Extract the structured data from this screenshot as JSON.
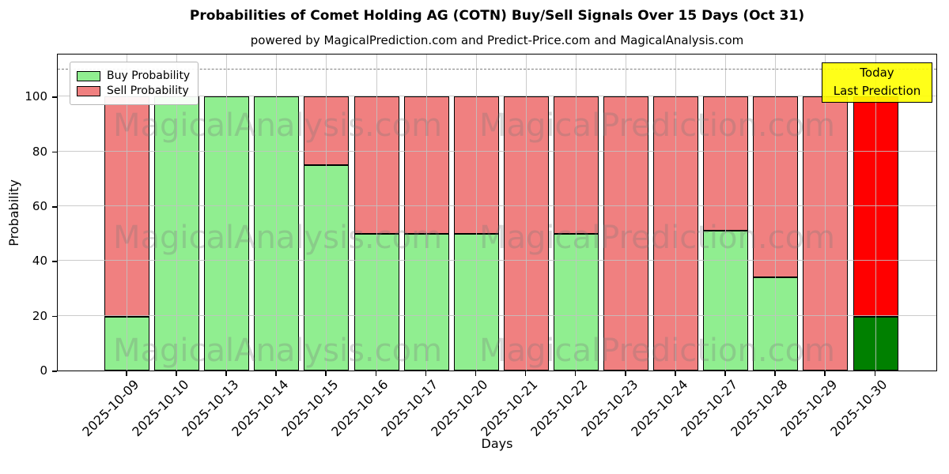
{
  "chart_data": {
    "type": "bar",
    "stacked": true,
    "title": "Probabilities of Comet Holding AG (COTN) Buy/Sell Signals Over 15 Days (Oct 31)",
    "subtitle": "powered by MagicalPrediction.com and Predict-Price.com and MagicalAnalysis.com",
    "xlabel": "Days",
    "ylabel": "Probability",
    "ylim": [
      0,
      116
    ],
    "yticks": [
      0,
      20,
      40,
      60,
      80,
      100
    ],
    "grid": "on",
    "dashed_line_y": 110,
    "legend_position": "upper-left",
    "categories": [
      "2025-10-09",
      "2025-10-10",
      "2025-10-13",
      "2025-10-14",
      "2025-10-15",
      "2025-10-16",
      "2025-10-17",
      "2025-10-20",
      "2025-10-21",
      "2025-10-22",
      "2025-10-23",
      "2025-10-24",
      "2025-10-27",
      "2025-10-28",
      "2025-10-29",
      "2025-10-30"
    ],
    "series": [
      {
        "name": "Buy Probability",
        "color": "#90EE90",
        "today_color": "#008000",
        "values": [
          19.5,
          100,
          100,
          100,
          75,
          50,
          50,
          50,
          0,
          50,
          0,
          0,
          51,
          34,
          0,
          19.5
        ]
      },
      {
        "name": "Sell Probability",
        "color": "#F08080",
        "today_color": "#FF0000",
        "values": [
          80.5,
          0,
          0,
          0,
          25,
          50,
          50,
          50,
          100,
          50,
          100,
          100,
          49,
          66,
          100,
          80.5
        ]
      }
    ],
    "annotation": {
      "lines": [
        "Today",
        "Last Prediction"
      ],
      "bg_color": "#FFFF00",
      "border_color": "#000000"
    },
    "watermarks": [
      "MagicalAnalysis.com",
      "MagicalPrediction.com"
    ],
    "colors": {
      "grid": "#c2c2c2",
      "dashed_line": "#7f7f7f",
      "bar_edge": "#000000"
    }
  }
}
